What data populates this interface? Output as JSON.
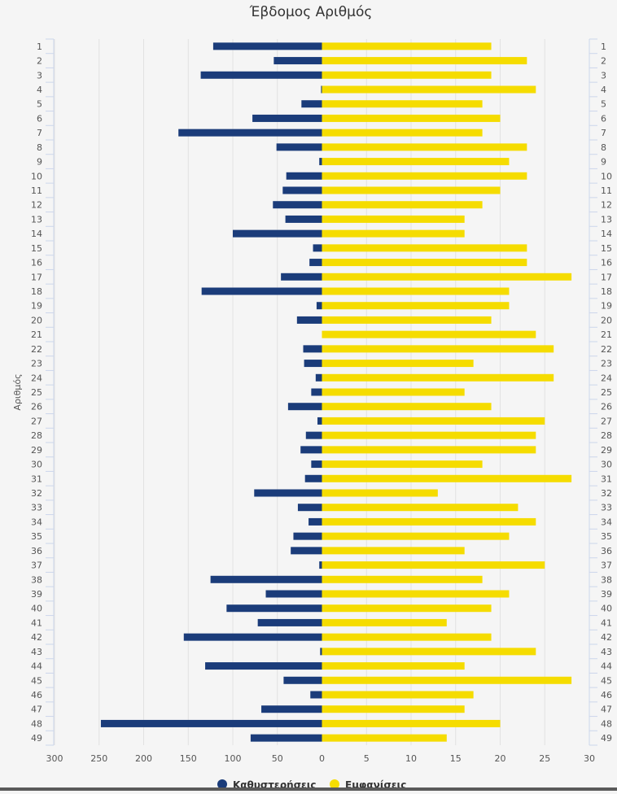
{
  "chart_data": {
    "type": "bar",
    "orientation": "horizontal",
    "layout": "butterfly",
    "title": "Έβδομος Αριθμός",
    "ylabel": "Αριθμός",
    "categories": [
      "1",
      "2",
      "3",
      "4",
      "5",
      "6",
      "7",
      "8",
      "9",
      "10",
      "11",
      "12",
      "13",
      "14",
      "15",
      "16",
      "17",
      "18",
      "19",
      "20",
      "21",
      "22",
      "23",
      "24",
      "25",
      "26",
      "27",
      "28",
      "29",
      "30",
      "31",
      "32",
      "33",
      "34",
      "35",
      "36",
      "37",
      "38",
      "39",
      "40",
      "41",
      "42",
      "43",
      "44",
      "45",
      "46",
      "47",
      "48",
      "49"
    ],
    "left_axis": {
      "ticks": [
        "300",
        "250",
        "200",
        "150",
        "100",
        "50",
        "0"
      ],
      "range": [
        0,
        300
      ]
    },
    "right_axis": {
      "ticks": [
        "5",
        "10",
        "15",
        "20",
        "25",
        "30"
      ],
      "range": [
        0,
        30
      ]
    },
    "series": [
      {
        "name": "Καθυστερήσεις",
        "color": "#1b3c7a",
        "side": "left",
        "values": [
          122,
          54,
          136,
          1,
          23,
          78,
          161,
          51,
          3,
          40,
          44,
          55,
          41,
          100,
          10,
          14,
          46,
          135,
          6,
          28,
          0,
          21,
          20,
          7,
          12,
          38,
          5,
          18,
          24,
          12,
          19,
          76,
          27,
          15,
          32,
          35,
          3,
          125,
          63,
          107,
          72,
          155,
          2,
          131,
          43,
          13,
          68,
          248,
          80
        ]
      },
      {
        "name": "Εμφανίσεις",
        "color": "#f5dc00",
        "side": "right",
        "values": [
          19,
          23,
          19,
          24,
          18,
          20,
          18,
          23,
          21,
          23,
          20,
          18,
          16,
          16,
          23,
          23,
          28,
          21,
          21,
          19,
          24,
          26,
          17,
          26,
          16,
          19,
          25,
          24,
          24,
          18,
          28,
          13,
          22,
          24,
          21,
          16,
          25,
          18,
          21,
          19,
          14,
          19,
          24,
          16,
          28,
          17,
          16,
          20,
          14
        ]
      }
    ],
    "grid": true,
    "legend_position": "bottom"
  }
}
